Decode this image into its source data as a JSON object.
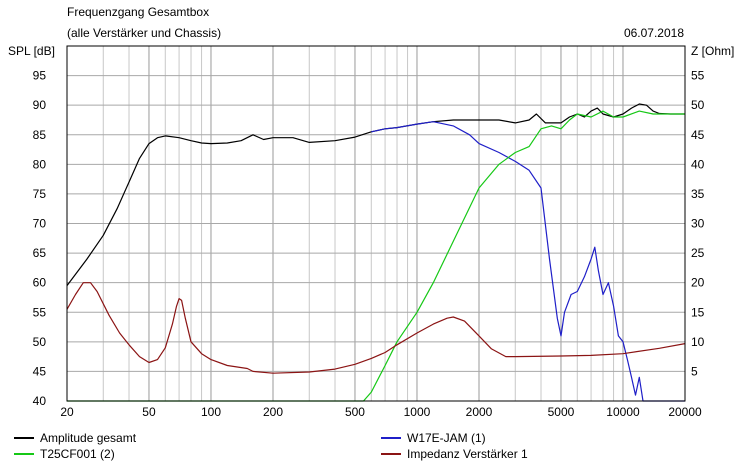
{
  "header": {
    "title": "Frequenzgang Gesamtbox",
    "subtitle": "(alle Verstärker und Chassis)",
    "date": "06.07.2018"
  },
  "chart_data": {
    "type": "line",
    "x_scale": "log",
    "xlim": [
      20,
      20000
    ],
    "x_ticks": [
      20,
      50,
      100,
      200,
      500,
      1000,
      2000,
      5000,
      10000,
      20000
    ],
    "x_tick_labels": [
      "20",
      "50",
      "100",
      "200",
      "500",
      "1000",
      "2000",
      "5000",
      "10000",
      "20000"
    ],
    "y_left_label": "SPL [dB]",
    "y_left_lim": [
      40,
      100
    ],
    "y_left_ticks": [
      40,
      45,
      50,
      55,
      60,
      65,
      70,
      75,
      80,
      85,
      90,
      95
    ],
    "y_right_label": "Z [Ohm]",
    "y_right_lim": [
      0,
      60
    ],
    "y_right_ticks": [
      5,
      10,
      15,
      20,
      25,
      30,
      35,
      40,
      45,
      50,
      55
    ],
    "grid": true,
    "legend_position": "bottom",
    "series": [
      {
        "name": "Amplitude gesamt",
        "axis": "left",
        "color": "#000000",
        "points": [
          [
            20,
            59.5
          ],
          [
            25,
            64
          ],
          [
            30,
            68
          ],
          [
            35,
            72.5
          ],
          [
            40,
            77
          ],
          [
            45,
            81
          ],
          [
            50,
            83.5
          ],
          [
            55,
            84.5
          ],
          [
            60,
            84.8
          ],
          [
            70,
            84.5
          ],
          [
            80,
            84
          ],
          [
            90,
            83.6
          ],
          [
            100,
            83.5
          ],
          [
            120,
            83.6
          ],
          [
            140,
            84
          ],
          [
            160,
            85
          ],
          [
            180,
            84.2
          ],
          [
            200,
            84.5
          ],
          [
            250,
            84.5
          ],
          [
            300,
            83.7
          ],
          [
            400,
            84
          ],
          [
            500,
            84.6
          ],
          [
            600,
            85.5
          ],
          [
            700,
            86
          ],
          [
            800,
            86.2
          ],
          [
            1000,
            86.8
          ],
          [
            1200,
            87.2
          ],
          [
            1500,
            87.5
          ],
          [
            2000,
            87.5
          ],
          [
            2500,
            87.5
          ],
          [
            3000,
            87
          ],
          [
            3500,
            87.5
          ],
          [
            3800,
            88.5
          ],
          [
            4200,
            87
          ],
          [
            5000,
            87
          ],
          [
            5500,
            88
          ],
          [
            6000,
            88.5
          ],
          [
            6500,
            88
          ],
          [
            7000,
            89
          ],
          [
            7500,
            89.5
          ],
          [
            8000,
            88.5
          ],
          [
            9000,
            88
          ],
          [
            10000,
            88.5
          ],
          [
            11000,
            89.5
          ],
          [
            12000,
            90.2
          ],
          [
            13000,
            90
          ],
          [
            14000,
            89
          ],
          [
            15000,
            88.6
          ],
          [
            17000,
            88.5
          ],
          [
            20000,
            88.5
          ]
        ]
      },
      {
        "name": "W17E-JAM (1)",
        "axis": "left",
        "color": "#1f1fc8",
        "points": [
          [
            600,
            85.5
          ],
          [
            700,
            86
          ],
          [
            800,
            86.2
          ],
          [
            1000,
            86.8
          ],
          [
            1200,
            87.2
          ],
          [
            1500,
            86.5
          ],
          [
            1800,
            85
          ],
          [
            2000,
            83.5
          ],
          [
            2500,
            82
          ],
          [
            3000,
            80.5
          ],
          [
            3500,
            79
          ],
          [
            4000,
            76
          ],
          [
            4400,
            64
          ],
          [
            4800,
            54
          ],
          [
            5000,
            51
          ],
          [
            5200,
            55
          ],
          [
            5600,
            58
          ],
          [
            6000,
            58.5
          ],
          [
            6500,
            61
          ],
          [
            7000,
            64
          ],
          [
            7300,
            66
          ],
          [
            7600,
            62
          ],
          [
            8000,
            58
          ],
          [
            8500,
            60
          ],
          [
            9000,
            56
          ],
          [
            9500,
            51
          ],
          [
            10000,
            50
          ],
          [
            10500,
            47
          ],
          [
            11000,
            44
          ],
          [
            11500,
            41
          ],
          [
            12000,
            44
          ],
          [
            12500,
            40
          ],
          [
            20000,
            40
          ]
        ]
      },
      {
        "name": "T25CF001 (2)",
        "axis": "left",
        "color": "#16c816",
        "points": [
          [
            20,
            40
          ],
          [
            550,
            40
          ],
          [
            600,
            41.5
          ],
          [
            700,
            46
          ],
          [
            800,
            50
          ],
          [
            1000,
            55
          ],
          [
            1200,
            60
          ],
          [
            1500,
            67
          ],
          [
            2000,
            76
          ],
          [
            2500,
            80
          ],
          [
            3000,
            82
          ],
          [
            3500,
            83
          ],
          [
            4000,
            86
          ],
          [
            4500,
            86.5
          ],
          [
            5000,
            86
          ],
          [
            5500,
            87.5
          ],
          [
            6000,
            88.5
          ],
          [
            7000,
            88
          ],
          [
            8000,
            89
          ],
          [
            9000,
            88
          ],
          [
            10000,
            88
          ],
          [
            12000,
            89
          ],
          [
            14000,
            88.5
          ],
          [
            20000,
            88.5
          ]
        ]
      },
      {
        "name": "Impedanz Verstärker 1",
        "axis": "right",
        "color": "#8b1414",
        "points": [
          [
            20,
            15.5
          ],
          [
            22,
            18
          ],
          [
            24,
            20
          ],
          [
            26,
            20
          ],
          [
            28,
            18.5
          ],
          [
            32,
            14.5
          ],
          [
            36,
            11.5
          ],
          [
            40,
            9.5
          ],
          [
            45,
            7.5
          ],
          [
            50,
            6.5
          ],
          [
            55,
            7
          ],
          [
            60,
            9
          ],
          [
            65,
            13
          ],
          [
            68,
            16
          ],
          [
            70,
            17.3
          ],
          [
            72,
            17
          ],
          [
            75,
            14
          ],
          [
            80,
            10
          ],
          [
            90,
            8
          ],
          [
            100,
            7
          ],
          [
            120,
            6
          ],
          [
            150,
            5.5
          ],
          [
            160,
            5
          ],
          [
            200,
            4.7
          ],
          [
            300,
            4.9
          ],
          [
            400,
            5.4
          ],
          [
            500,
            6.2
          ],
          [
            600,
            7.2
          ],
          [
            700,
            8.2
          ],
          [
            800,
            9.5
          ],
          [
            1000,
            11.5
          ],
          [
            1200,
            13
          ],
          [
            1400,
            14
          ],
          [
            1500,
            14.2
          ],
          [
            1700,
            13.5
          ],
          [
            2000,
            11
          ],
          [
            2300,
            8.8
          ],
          [
            2700,
            7.5
          ],
          [
            3000,
            7.5
          ],
          [
            5000,
            7.6
          ],
          [
            7000,
            7.7
          ],
          [
            10000,
            8
          ],
          [
            15000,
            8.9
          ],
          [
            20000,
            9.7
          ]
        ]
      }
    ]
  }
}
